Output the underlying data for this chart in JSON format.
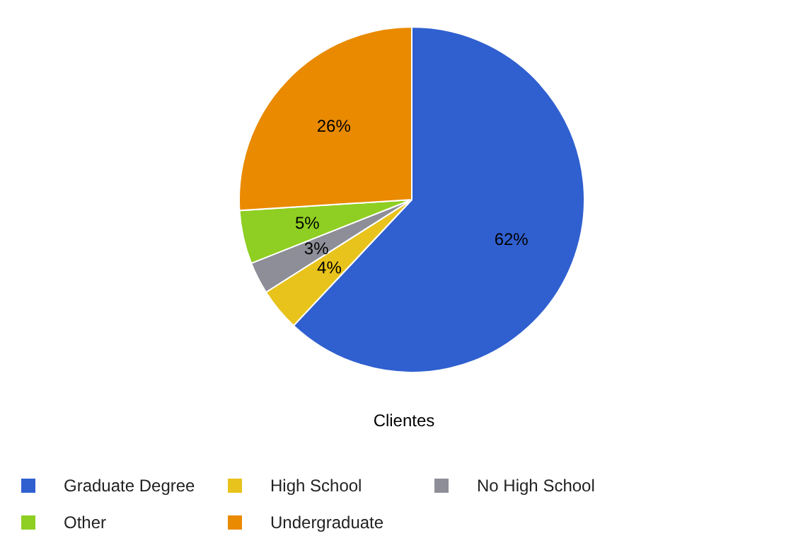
{
  "chart_data": {
    "type": "pie",
    "title": "Clientes",
    "categories": [
      "Graduate Degree",
      "High School",
      "No High School",
      "Other",
      "Undergraduate"
    ],
    "values": [
      62,
      4,
      3,
      5,
      26
    ],
    "colors": [
      "#3060cf",
      "#e8c31b",
      "#8e8e98",
      "#8fce22",
      "#e98a00"
    ],
    "value_labels": [
      "62%",
      "4%",
      "3%",
      "5%",
      "26%"
    ],
    "legend": "bottom"
  }
}
